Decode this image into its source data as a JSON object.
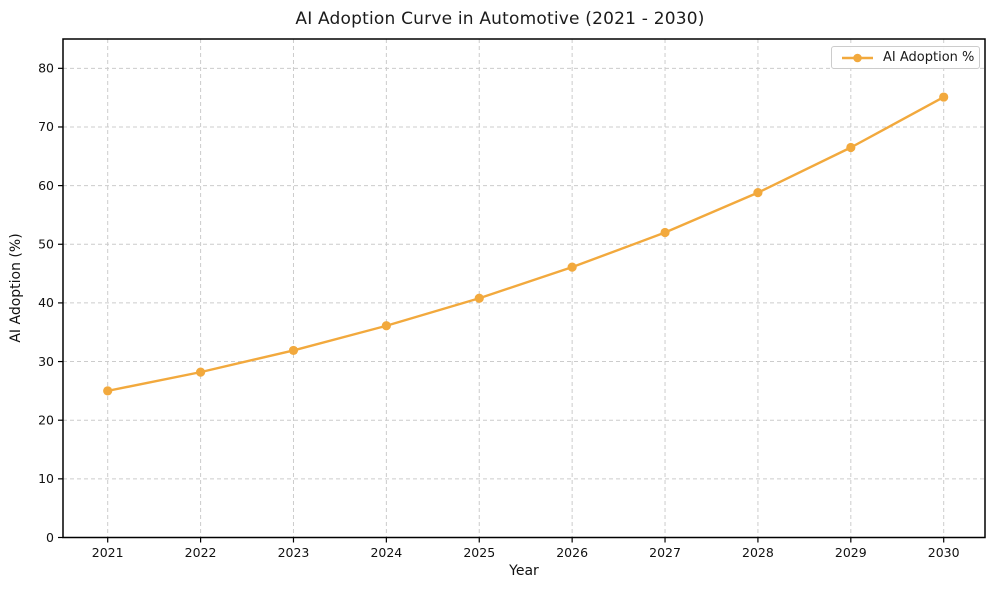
{
  "chart_data": {
    "type": "line",
    "title": "AI Adoption Curve in Automotive (2021 - 2030)",
    "xlabel": "Year",
    "ylabel": "AI Adoption (%)",
    "x": [
      2021,
      2022,
      2023,
      2024,
      2025,
      2026,
      2027,
      2028,
      2029,
      2030
    ],
    "series": [
      {
        "name": "AI Adoption %",
        "values": [
          25.0,
          28.2,
          31.9,
          36.1,
          40.8,
          46.1,
          52.0,
          58.8,
          66.5,
          75.1
        ],
        "color": "#F2A93D",
        "marker": "circle"
      }
    ],
    "ylim": [
      0,
      85
    ],
    "yticks": [
      0,
      10,
      20,
      30,
      40,
      50,
      60,
      70,
      80
    ],
    "grid": true,
    "grid_style": "dashed",
    "grid_color": "#cccccc",
    "spine_color": "#000000",
    "tick_label_color": "#111111",
    "background": "#ffffff",
    "legend_position": "upper right"
  }
}
